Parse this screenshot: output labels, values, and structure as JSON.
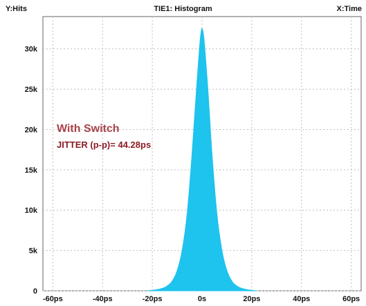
{
  "chart_data": {
    "type": "area",
    "title": "TIE1: Histogram",
    "ylabel": "Y:Hits",
    "xlabel": "X:Time",
    "x_unit": "ps",
    "xlim": [
      -64,
      64
    ],
    "ylim": [
      0,
      34000
    ],
    "grid": true,
    "x_ticks": [
      {
        "value": -60,
        "label": "-60ps"
      },
      {
        "value": -40,
        "label": "-40ps"
      },
      {
        "value": -20,
        "label": "-20ps"
      },
      {
        "value": 0,
        "label": "0s"
      },
      {
        "value": 20,
        "label": "20ps"
      },
      {
        "value": 40,
        "label": "40ps"
      },
      {
        "value": 60,
        "label": "60ps"
      }
    ],
    "y_ticks": [
      {
        "value": 0,
        "label": "0"
      },
      {
        "value": 5000,
        "label": "5k"
      },
      {
        "value": 10000,
        "label": "10k"
      },
      {
        "value": 15000,
        "label": "15k"
      },
      {
        "value": 20000,
        "label": "20k"
      },
      {
        "value": 25000,
        "label": "25k"
      },
      {
        "value": 30000,
        "label": "30k"
      }
    ],
    "series": [
      {
        "color": "#1ec3ee",
        "points": [
          {
            "x": -22,
            "y": 0
          },
          {
            "x": -20,
            "y": 60
          },
          {
            "x": -18,
            "y": 150
          },
          {
            "x": -16,
            "y": 300
          },
          {
            "x": -14,
            "y": 600
          },
          {
            "x": -12,
            "y": 1200
          },
          {
            "x": -10,
            "y": 2500
          },
          {
            "x": -8,
            "y": 5000
          },
          {
            "x": -6,
            "y": 9500
          },
          {
            "x": -4,
            "y": 17000
          },
          {
            "x": -2,
            "y": 26000
          },
          {
            "x": 0,
            "y": 32500
          },
          {
            "x": 2,
            "y": 26500
          },
          {
            "x": 4,
            "y": 17000
          },
          {
            "x": 6,
            "y": 9500
          },
          {
            "x": 8,
            "y": 5000
          },
          {
            "x": 10,
            "y": 2500
          },
          {
            "x": 12,
            "y": 1200
          },
          {
            "x": 14,
            "y": 600
          },
          {
            "x": 16,
            "y": 300
          },
          {
            "x": 18,
            "y": 150
          },
          {
            "x": 20,
            "y": 60
          },
          {
            "x": 22,
            "y": 0
          }
        ]
      }
    ],
    "annotations": [
      {
        "text": "With Switch",
        "color": "#a8434a"
      },
      {
        "text": "JITTER (p-p)= 44.28ps",
        "color": "#8b1c24"
      }
    ]
  }
}
